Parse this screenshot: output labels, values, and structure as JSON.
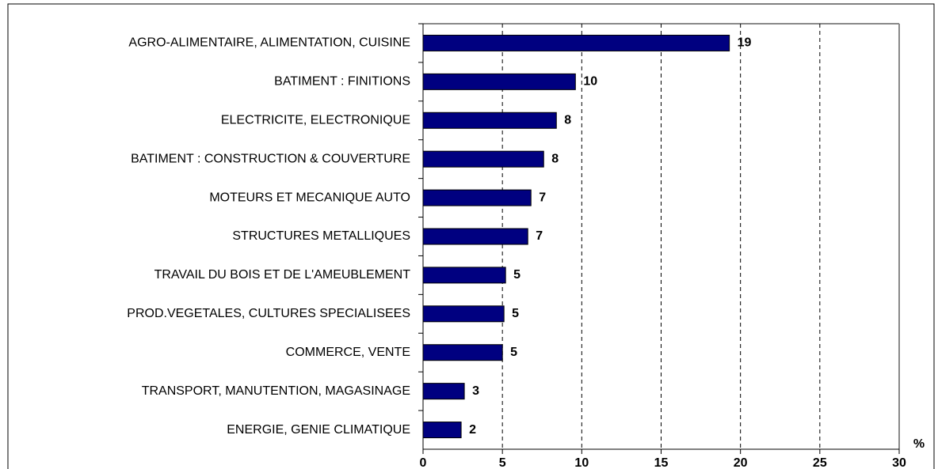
{
  "chart_data": {
    "type": "bar",
    "orientation": "horizontal",
    "categories": [
      "AGRO-ALIMENTAIRE, ALIMENTATION, CUISINE",
      "BATIMENT : FINITIONS",
      "ELECTRICITE, ELECTRONIQUE",
      "BATIMENT : CONSTRUCTION & COUVERTURE",
      "MOTEURS ET MECANIQUE AUTO",
      "STRUCTURES METALLIQUES",
      "TRAVAIL DU BOIS ET DE L'AMEUBLEMENT",
      "PROD.VEGETALES, CULTURES SPECIALISEES",
      "COMMERCE, VENTE",
      "TRANSPORT, MANUTENTION, MAGASINAGE",
      "ENERGIE, GENIE CLIMATIQUE"
    ],
    "values": [
      19.3,
      9.6,
      8.4,
      7.6,
      6.8,
      6.6,
      5.2,
      5.1,
      5.0,
      2.6,
      2.4
    ],
    "value_labels": [
      "19",
      "10",
      "8",
      "8",
      "7",
      "7",
      "5",
      "5",
      "5",
      "3",
      "2"
    ],
    "color": "#000080",
    "x_label": "%",
    "xlim": [
      0,
      30
    ],
    "xticks": [
      0,
      5,
      10,
      15,
      20,
      25,
      30
    ],
    "grid": true
  }
}
